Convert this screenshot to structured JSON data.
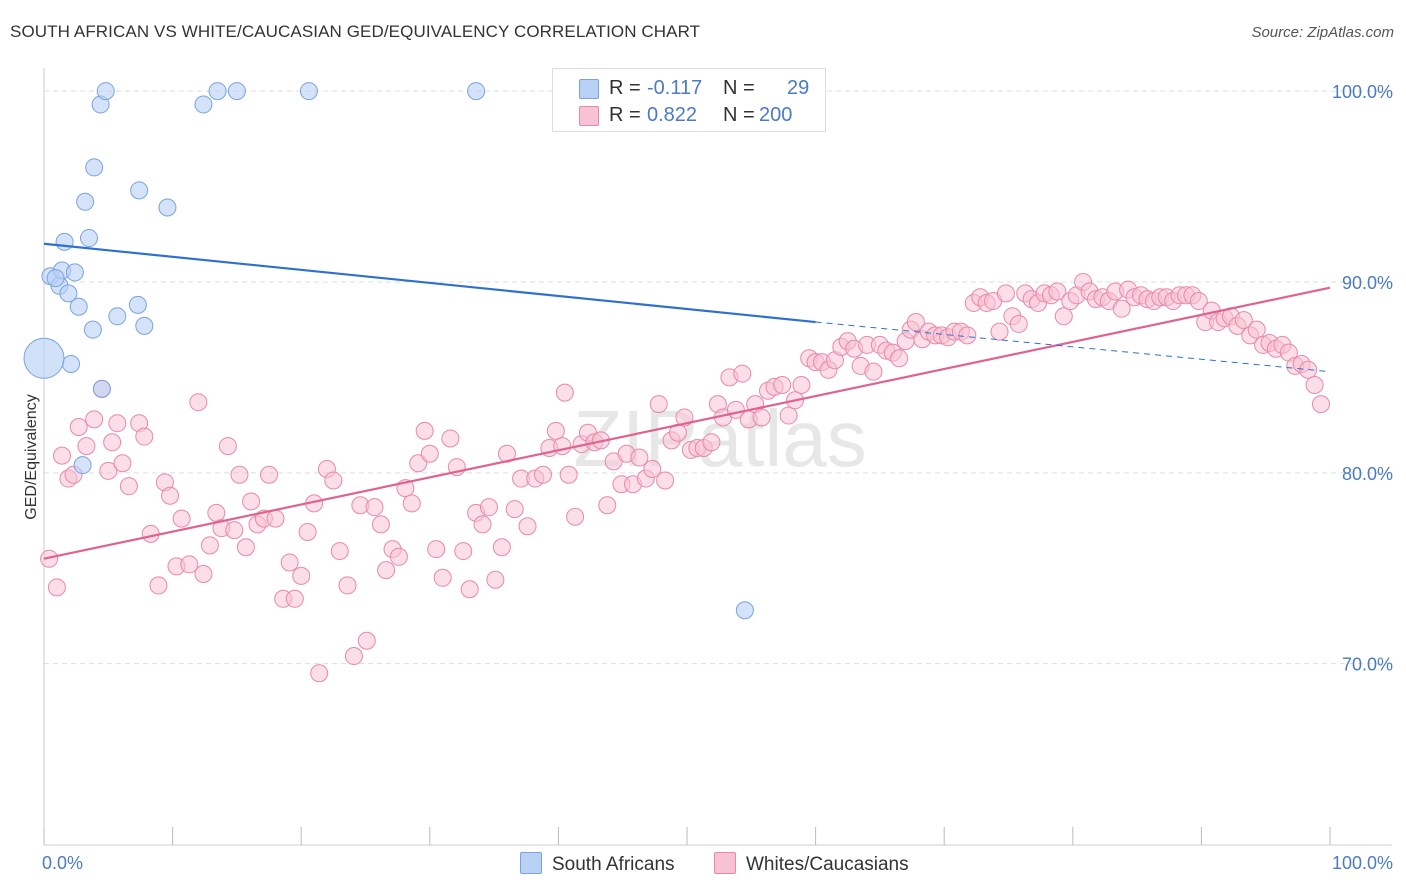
{
  "title": "SOUTH AFRICAN VS WHITE/CAUCASIAN GED/EQUIVALENCY CORRELATION CHART",
  "source": "Source: ZipAtlas.com",
  "watermark": "ZIPatlas",
  "legend": {
    "south_africans": {
      "r_label": "R =",
      "r_value": "-0.117",
      "n_label": "N =",
      "n_value": "29"
    },
    "whites": {
      "r_label": "R =",
      "r_value": "0.822",
      "n_label": "N =",
      "n_value": "200"
    }
  },
  "bottom_legend": {
    "south_africans": "South Africans",
    "whites": "Whites/Caucasians"
  },
  "colors": {
    "blue_fill": "#b8d1f5",
    "blue_stroke": "#7aa3de",
    "blue_line": "#2f6fcf",
    "pink_fill": "#f7c2d3",
    "pink_stroke": "#e889a8",
    "pink_line": "#e0628f",
    "grid": "#dddddd",
    "tick_text": "#4a7bc4"
  },
  "chart_data": {
    "type": "scatter",
    "title": "SOUTH AFRICAN VS WHITE/CAUCASIAN GED/EQUIVALENCY CORRELATION CHART",
    "xlabel": "",
    "ylabel": "GED/Equivalency",
    "xlim": [
      0,
      100
    ],
    "ylim": [
      60.5,
      101
    ],
    "x_tick_labels": [
      "0.0%",
      "100.0%"
    ],
    "y_ticks": [
      70,
      80,
      90,
      100
    ],
    "y_tick_labels": [
      "70.0%",
      "80.0%",
      "90.0%",
      "100.0%"
    ],
    "series": [
      {
        "name": "South Africans",
        "r": -0.117,
        "n": 29,
        "trend": {
          "x": [
            0,
            60
          ],
          "y": [
            92.0,
            87.9
          ],
          "dashed_to": [
            100,
            85.3
          ]
        },
        "points": [
          [
            0.5,
            90.3
          ],
          [
            1.2,
            89.8
          ],
          [
            1.4,
            90.6
          ],
          [
            1.6,
            92.1
          ],
          [
            1.9,
            89.4
          ],
          [
            2.4,
            90.5
          ],
          [
            2.7,
            88.7
          ],
          [
            3.0,
            80.4
          ],
          [
            3.2,
            94.2
          ],
          [
            3.5,
            92.3
          ],
          [
            3.8,
            87.5
          ],
          [
            3.9,
            96.0
          ],
          [
            4.4,
            99.3
          ],
          [
            4.5,
            84.4
          ],
          [
            4.8,
            100.0
          ],
          [
            5.7,
            88.2
          ],
          [
            7.3,
            88.8
          ],
          [
            7.4,
            94.8
          ],
          [
            7.8,
            87.7
          ],
          [
            9.6,
            93.9
          ],
          [
            12.4,
            99.3
          ],
          [
            13.5,
            100.0
          ],
          [
            15.0,
            100.0
          ],
          [
            20.6,
            100.0
          ],
          [
            33.6,
            100.0
          ],
          [
            54.5,
            72.8
          ],
          [
            2.1,
            85.7
          ],
          [
            0.9,
            90.2
          ]
        ],
        "big_point": [
          0.0,
          86.0
        ]
      },
      {
        "name": "Whites/Caucasians",
        "r": 0.822,
        "n": 200,
        "trend": {
          "x": [
            0,
            100
          ],
          "y": [
            75.5,
            89.7
          ]
        },
        "points": [
          [
            0.4,
            75.5
          ],
          [
            1.0,
            74.0
          ],
          [
            1.4,
            80.9
          ],
          [
            1.9,
            79.7
          ],
          [
            2.3,
            79.9
          ],
          [
            2.7,
            82.4
          ],
          [
            3.3,
            81.4
          ],
          [
            3.9,
            82.8
          ],
          [
            4.5,
            84.4
          ],
          [
            5.0,
            80.1
          ],
          [
            5.3,
            81.6
          ],
          [
            5.7,
            82.6
          ],
          [
            6.1,
            80.5
          ],
          [
            6.6,
            79.3
          ],
          [
            7.4,
            82.6
          ],
          [
            7.8,
            81.9
          ],
          [
            8.3,
            76.8
          ],
          [
            8.9,
            74.1
          ],
          [
            9.4,
            79.5
          ],
          [
            9.8,
            78.8
          ],
          [
            10.3,
            75.1
          ],
          [
            10.7,
            77.6
          ],
          [
            11.3,
            75.2
          ],
          [
            12.0,
            83.7
          ],
          [
            12.4,
            74.7
          ],
          [
            12.9,
            76.2
          ],
          [
            13.4,
            77.9
          ],
          [
            13.8,
            77.1
          ],
          [
            14.3,
            81.4
          ],
          [
            14.8,
            77.0
          ],
          [
            15.2,
            79.9
          ],
          [
            15.7,
            76.1
          ],
          [
            16.1,
            78.5
          ],
          [
            16.6,
            77.3
          ],
          [
            17.1,
            77.6
          ],
          [
            17.5,
            79.9
          ],
          [
            18.0,
            77.6
          ],
          [
            18.6,
            73.4
          ],
          [
            19.1,
            75.3
          ],
          [
            19.5,
            73.4
          ],
          [
            20.0,
            74.6
          ],
          [
            20.5,
            76.9
          ],
          [
            21.0,
            78.4
          ],
          [
            21.4,
            69.5
          ],
          [
            22.0,
            80.2
          ],
          [
            22.5,
            79.6
          ],
          [
            23.0,
            75.9
          ],
          [
            23.6,
            74.1
          ],
          [
            24.1,
            70.4
          ],
          [
            24.6,
            78.3
          ],
          [
            25.1,
            71.2
          ],
          [
            25.7,
            78.2
          ],
          [
            26.2,
            77.3
          ],
          [
            26.6,
            74.9
          ],
          [
            27.1,
            76.0
          ],
          [
            27.6,
            75.6
          ],
          [
            28.1,
            79.2
          ],
          [
            28.6,
            78.4
          ],
          [
            29.1,
            80.5
          ],
          [
            29.6,
            82.2
          ],
          [
            30.0,
            81.0
          ],
          [
            30.5,
            76.0
          ],
          [
            31.0,
            74.5
          ],
          [
            31.6,
            81.8
          ],
          [
            32.1,
            80.3
          ],
          [
            32.6,
            75.9
          ],
          [
            33.1,
            73.9
          ],
          [
            33.6,
            77.9
          ],
          [
            34.1,
            77.3
          ],
          [
            34.6,
            78.2
          ],
          [
            35.1,
            74.4
          ],
          [
            35.6,
            76.1
          ],
          [
            36.0,
            81.0
          ],
          [
            36.6,
            78.1
          ],
          [
            37.1,
            79.7
          ],
          [
            37.6,
            77.2
          ],
          [
            38.2,
            79.7
          ],
          [
            38.8,
            79.9
          ],
          [
            39.3,
            81.3
          ],
          [
            39.8,
            82.2
          ],
          [
            40.3,
            81.4
          ],
          [
            40.8,
            79.9
          ],
          [
            41.3,
            77.7
          ],
          [
            41.8,
            81.5
          ],
          [
            42.3,
            82.1
          ],
          [
            42.8,
            81.6
          ],
          [
            43.3,
            81.7
          ],
          [
            43.8,
            78.3
          ],
          [
            44.3,
            80.6
          ],
          [
            44.9,
            79.4
          ],
          [
            45.3,
            81.0
          ],
          [
            45.8,
            79.4
          ],
          [
            46.3,
            80.8
          ],
          [
            46.8,
            79.7
          ],
          [
            47.3,
            80.2
          ],
          [
            47.8,
            83.6
          ],
          [
            48.3,
            79.6
          ],
          [
            48.8,
            81.7
          ],
          [
            49.3,
            82.1
          ],
          [
            49.8,
            82.9
          ],
          [
            50.3,
            81.2
          ],
          [
            50.8,
            81.3
          ],
          [
            51.3,
            81.3
          ],
          [
            51.9,
            81.6
          ],
          [
            52.4,
            83.6
          ],
          [
            52.8,
            82.9
          ],
          [
            53.3,
            85.0
          ],
          [
            53.8,
            83.3
          ],
          [
            54.3,
            85.2
          ],
          [
            54.8,
            82.8
          ],
          [
            55.3,
            83.6
          ],
          [
            55.8,
            82.9
          ],
          [
            56.3,
            84.3
          ],
          [
            56.8,
            84.5
          ],
          [
            57.4,
            84.6
          ],
          [
            57.9,
            83.0
          ],
          [
            58.4,
            83.8
          ],
          [
            58.9,
            84.6
          ],
          [
            59.5,
            86.0
          ],
          [
            60.0,
            85.8
          ],
          [
            60.5,
            85.8
          ],
          [
            61.0,
            85.4
          ],
          [
            61.5,
            85.9
          ],
          [
            62.0,
            86.6
          ],
          [
            62.5,
            86.9
          ],
          [
            63.0,
            86.5
          ],
          [
            63.5,
            85.6
          ],
          [
            64.0,
            86.7
          ],
          [
            64.5,
            85.3
          ],
          [
            65.0,
            86.7
          ],
          [
            65.5,
            86.4
          ],
          [
            66.0,
            86.3
          ],
          [
            66.5,
            86.0
          ],
          [
            67.0,
            86.9
          ],
          [
            67.4,
            87.5
          ],
          [
            67.8,
            87.9
          ],
          [
            68.3,
            87.0
          ],
          [
            68.8,
            87.4
          ],
          [
            69.3,
            87.2
          ],
          [
            69.8,
            87.2
          ],
          [
            70.3,
            87.1
          ],
          [
            70.8,
            87.4
          ],
          [
            71.3,
            87.4
          ],
          [
            71.8,
            87.2
          ],
          [
            72.3,
            88.9
          ],
          [
            72.8,
            89.2
          ],
          [
            73.3,
            88.9
          ],
          [
            73.8,
            89.0
          ],
          [
            74.3,
            87.4
          ],
          [
            74.8,
            89.4
          ],
          [
            75.3,
            88.2
          ],
          [
            75.8,
            87.8
          ],
          [
            76.3,
            89.4
          ],
          [
            76.8,
            89.1
          ],
          [
            77.3,
            88.9
          ],
          [
            77.8,
            89.4
          ],
          [
            78.3,
            89.3
          ],
          [
            78.8,
            89.5
          ],
          [
            79.3,
            88.2
          ],
          [
            79.8,
            89.0
          ],
          [
            80.3,
            89.3
          ],
          [
            80.8,
            90.0
          ],
          [
            81.3,
            89.5
          ],
          [
            81.8,
            89.1
          ],
          [
            82.3,
            89.2
          ],
          [
            82.8,
            89.0
          ],
          [
            83.3,
            89.5
          ],
          [
            83.8,
            88.6
          ],
          [
            84.3,
            89.6
          ],
          [
            84.8,
            89.2
          ],
          [
            85.3,
            89.3
          ],
          [
            85.8,
            89.1
          ],
          [
            86.3,
            89.0
          ],
          [
            86.8,
            89.2
          ],
          [
            87.3,
            89.2
          ],
          [
            87.8,
            89.0
          ],
          [
            88.3,
            89.3
          ],
          [
            88.8,
            89.3
          ],
          [
            89.3,
            89.3
          ],
          [
            89.8,
            89.0
          ],
          [
            90.3,
            87.9
          ],
          [
            90.8,
            88.5
          ],
          [
            91.3,
            87.9
          ],
          [
            91.8,
            88.1
          ],
          [
            92.3,
            88.2
          ],
          [
            92.8,
            87.7
          ],
          [
            93.3,
            88.0
          ],
          [
            93.8,
            87.2
          ],
          [
            94.3,
            87.5
          ],
          [
            94.8,
            86.7
          ],
          [
            95.3,
            86.8
          ],
          [
            95.8,
            86.5
          ],
          [
            96.3,
            86.7
          ],
          [
            96.8,
            86.3
          ],
          [
            97.3,
            85.6
          ],
          [
            97.8,
            85.7
          ],
          [
            98.3,
            85.4
          ],
          [
            98.8,
            84.6
          ],
          [
            99.3,
            83.6
          ],
          [
            40.5,
            84.2
          ]
        ]
      }
    ]
  }
}
